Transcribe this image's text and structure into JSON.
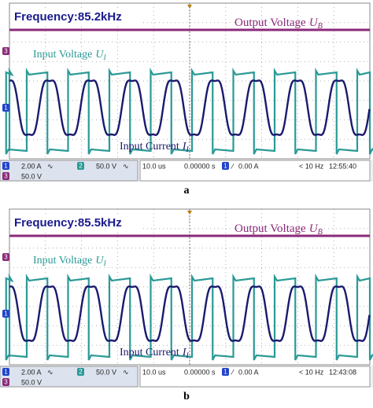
{
  "panels": [
    {
      "frequency": "Frequency:85.2kHz",
      "output_label": "Output Voltage",
      "output_symbol": "U",
      "output_sub": "B",
      "input_v_label": "Input Voltage",
      "input_v_symbol": "U",
      "input_v_sub": "I",
      "input_i_label": "Input Current",
      "input_i_symbol": "I",
      "input_i_sub": "I",
      "ch3_marker": "3",
      "ch1_marker": "1",
      "status": {
        "ch1": "1",
        "ch1_scale": "2.00 A",
        "ch2": "2",
        "ch2_scale": "50.0 V",
        "ch3": "3",
        "ch3_scale": "50.0 V",
        "timebase": "10.0 us",
        "offset": "0.00000 s",
        "trig_ch": "1",
        "trigger": "0.00 A",
        "freq": "< 10 Hz",
        "time": "12:55:40"
      },
      "caption": "a"
    },
    {
      "frequency": "Frequency:85.5kHz",
      "output_label": "Output Voltage",
      "output_symbol": "U",
      "output_sub": "B",
      "input_v_label": "Input Voltage",
      "input_v_symbol": "U",
      "input_v_sub": "I",
      "input_i_label": "Input Current",
      "input_i_symbol": "I",
      "input_i_sub": "I",
      "ch3_marker": "3",
      "ch1_marker": "1",
      "status": {
        "ch1": "1",
        "ch1_scale": "2.00 A",
        "ch2": "2",
        "ch2_scale": "50.0 V",
        "ch3": "3",
        "ch3_scale": "50.0 V",
        "timebase": "10.0 us",
        "offset": "0.00000 s",
        "trig_ch": "1",
        "trigger": "0.00 A",
        "freq": "< 10 Hz",
        "time": "12:43:08"
      },
      "caption": "b"
    }
  ]
}
